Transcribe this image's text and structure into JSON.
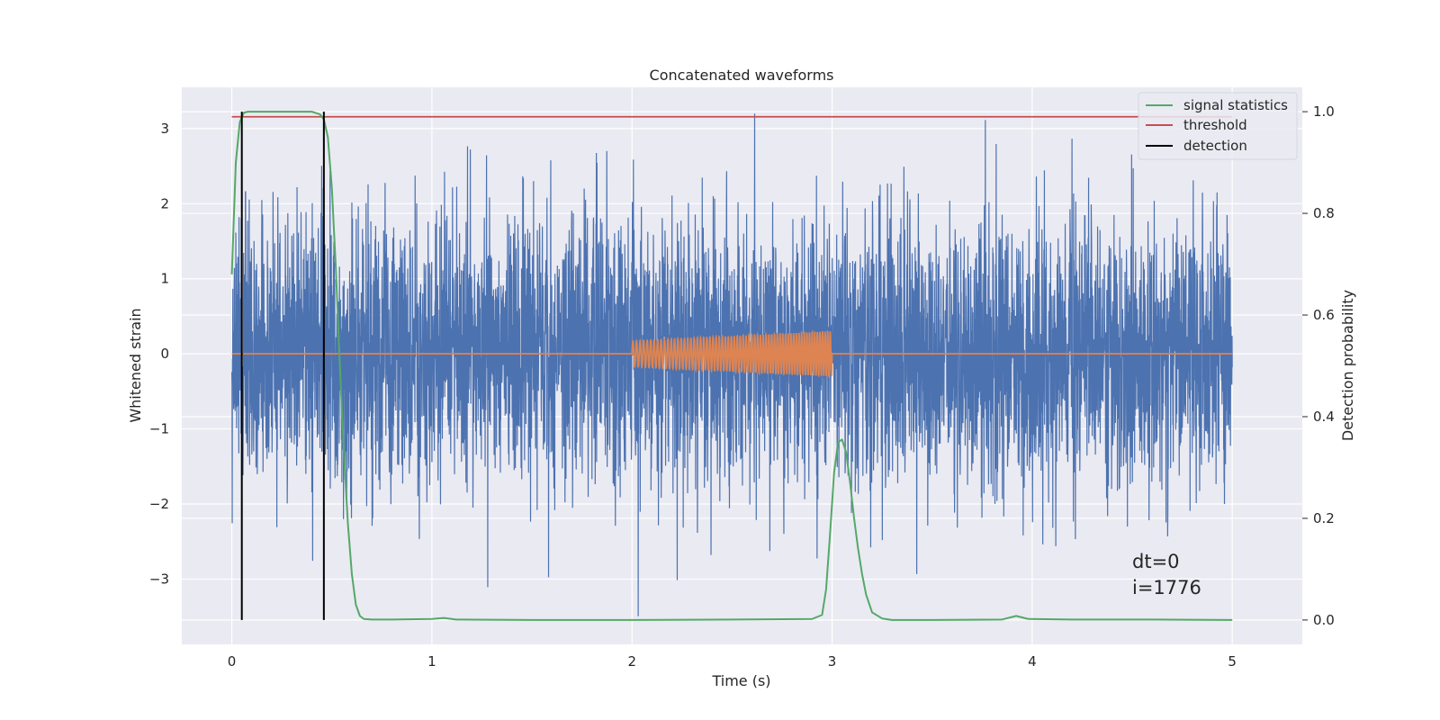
{
  "chart_data": {
    "type": "line",
    "title": "Concatenated waveforms",
    "xlabel": "Time (s)",
    "ylabel": "Whitened strain",
    "y2label": "Detection probability",
    "xlim": [
      -0.25,
      5.35
    ],
    "ylim": [
      -3.87,
      3.55
    ],
    "y2lim": [
      -0.048,
      1.048
    ],
    "x_ticks": [
      0,
      1,
      2,
      3,
      4,
      5
    ],
    "x_tick_labels": [
      "0",
      "1",
      "2",
      "3",
      "4",
      "5"
    ],
    "y_ticks": [
      -3,
      -2,
      -1,
      0,
      1,
      2,
      3
    ],
    "y_tick_labels": [
      "−3",
      "−2",
      "−1",
      "0",
      "1",
      "2",
      "3"
    ],
    "y2_ticks": [
      0.0,
      0.2,
      0.4,
      0.6,
      0.8,
      1.0
    ],
    "y2_tick_labels": [
      "0.0",
      "0.2",
      "0.4",
      "0.6",
      "0.8",
      "1.0"
    ],
    "grid": true,
    "legend_position": "top-right",
    "colors": {
      "background": "#eaeaf2",
      "grid": "#ffffff",
      "strain": "#4c72b0",
      "injection": "#dd8452",
      "signal_statistics": "#55a868",
      "threshold": "#c44e52",
      "detection": "#000000"
    },
    "series": [
      {
        "id": "strain",
        "axis": "left",
        "x_range": [
          0,
          5
        ],
        "amplitude_std": 0.9,
        "peak_max": 3.2,
        "peak_min": -3.55
      },
      {
        "id": "injection",
        "axis": "left",
        "x_range": [
          0,
          5
        ],
        "chirp_start": 2.0,
        "chirp_end": 3.0,
        "amplitude_start": 0.17,
        "amplitude_end": 0.3
      },
      {
        "name": "signal statistics",
        "axis": "right",
        "x": [
          0.0,
          0.02,
          0.04,
          0.06,
          0.08,
          0.1,
          0.2,
          0.3,
          0.4,
          0.44,
          0.46,
          0.48,
          0.5,
          0.52,
          0.54,
          0.56,
          0.58,
          0.6,
          0.62,
          0.64,
          0.66,
          0.7,
          0.8,
          1.0,
          1.06,
          1.12,
          1.5,
          2.0,
          2.5,
          2.9,
          2.95,
          2.97,
          2.99,
          3.01,
          3.03,
          3.05,
          3.07,
          3.09,
          3.11,
          3.13,
          3.15,
          3.17,
          3.2,
          3.25,
          3.3,
          3.5,
          3.85,
          3.92,
          3.98,
          4.2,
          4.6,
          5.0
        ],
        "y": [
          0.68,
          0.9,
          0.98,
          0.998,
          1.0,
          1.0,
          1.0,
          1.0,
          1.0,
          0.995,
          0.985,
          0.95,
          0.85,
          0.69,
          0.5,
          0.33,
          0.19,
          0.09,
          0.03,
          0.008,
          0.002,
          0.001,
          0.001,
          0.002,
          0.004,
          0.001,
          0.0,
          0.0,
          0.001,
          0.002,
          0.01,
          0.06,
          0.17,
          0.29,
          0.35,
          0.355,
          0.33,
          0.27,
          0.2,
          0.14,
          0.09,
          0.05,
          0.015,
          0.003,
          0.0,
          0.0,
          0.001,
          0.008,
          0.002,
          0.001,
          0.001,
          0.0
        ]
      },
      {
        "name": "threshold",
        "axis": "right",
        "x": [
          0,
          5
        ],
        "y": [
          0.99,
          0.99
        ]
      },
      {
        "name": "detection",
        "axis": "right",
        "x": [
          0.05,
          0.46
        ],
        "y_span": [
          0,
          1
        ]
      }
    ],
    "legend": [
      "signal statistics",
      "threshold",
      "detection"
    ],
    "annotations": [
      "dt=0",
      "i=1776"
    ]
  }
}
